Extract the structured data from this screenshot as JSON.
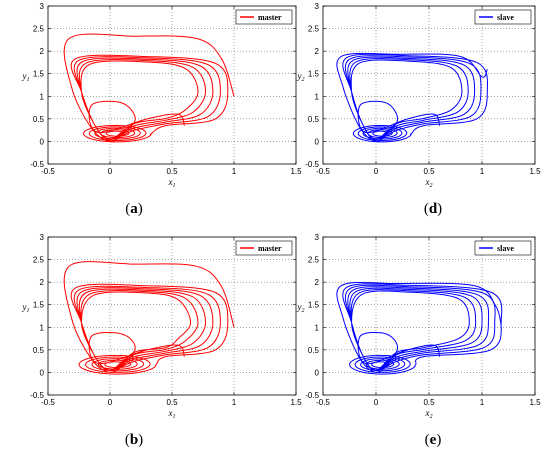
{
  "chart_data": [
    {
      "type": "line",
      "panel_label": {
        "open": "(",
        "letter": "a",
        "close": ")"
      },
      "series": [
        {
          "name": "master",
          "color": "#ff0000"
        }
      ],
      "xlabel": {
        "main": "x",
        "sub": "1"
      },
      "ylabel": {
        "main": "y",
        "sub": "1"
      },
      "xlim": [
        -0.5,
        1.5
      ],
      "ylim": [
        -0.5,
        3
      ],
      "xticks": [
        "-0.5",
        "0",
        "0.5",
        "1",
        "1.5"
      ],
      "yticks": [
        "-0.5",
        "0",
        "0.5",
        "1",
        "1.5",
        "2",
        "2.5",
        "3"
      ],
      "grid": true,
      "legend": "top-right",
      "curve": {
        "start": [
          1.0,
          1.0
        ],
        "outer_y": 2.33,
        "x_left": -0.33,
        "x_right": 0.95,
        "ring_y": [
          1.88,
          1.85,
          1.82,
          1.79,
          1.76
        ],
        "spiral_rmax": 0.22
      }
    },
    {
      "type": "line",
      "panel_label": {
        "open": "(",
        "letter": "d",
        "close": ")"
      },
      "series": [
        {
          "name": "slave",
          "color": "#0000ff"
        }
      ],
      "xlabel": {
        "main": "x",
        "sub": "2"
      },
      "ylabel": {
        "main": "y",
        "sub": "2"
      },
      "xlim": [
        -0.5,
        1.5
      ],
      "ylim": [
        -0.5,
        3
      ],
      "xticks": [
        "-0.5",
        "0",
        "0.5",
        "1",
        "1.5"
      ],
      "yticks": [
        "-0.5",
        "0",
        "0.5",
        "1",
        "1.5",
        "2",
        "2.5",
        "3"
      ],
      "grid": true,
      "legend": "top-right",
      "curve": {
        "start": [
          1.05,
          1.6
        ],
        "outer_y": 1.93,
        "x_left": -0.33,
        "x_right": 1.05,
        "ring_y": [
          1.9,
          1.87,
          1.84,
          1.81,
          1.78
        ],
        "spiral_rmax": 0.22
      }
    },
    {
      "type": "line",
      "panel_label": {
        "open": "(",
        "letter": "b",
        "close": ")"
      },
      "series": [
        {
          "name": "master",
          "color": "#ff0000"
        }
      ],
      "xlabel": {
        "main": "x",
        "sub": "1"
      },
      "ylabel": {
        "main": "y",
        "sub": "1"
      },
      "xlim": [
        -0.5,
        1.5
      ],
      "ylim": [
        -0.5,
        3
      ],
      "xticks": [
        "-0.5",
        "0",
        "0.5",
        "1",
        "1.5"
      ],
      "yticks": [
        "-0.5",
        "0",
        "0.5",
        "1",
        "1.5",
        "2",
        "2.5",
        "3"
      ],
      "grid": true,
      "legend": "top-right",
      "curve": {
        "start": [
          1.0,
          1.0
        ],
        "outer_y": 2.4,
        "x_left": -0.33,
        "x_right": 0.95,
        "ring_y": [
          1.92,
          1.88,
          1.85,
          1.82,
          1.79,
          1.76
        ],
        "spiral_rmax": 0.25
      }
    },
    {
      "type": "line",
      "panel_label": {
        "open": "(",
        "letter": "e",
        "close": ")"
      },
      "series": [
        {
          "name": "slave",
          "color": "#0000ff"
        }
      ],
      "xlabel": {
        "main": "x",
        "sub": "2"
      },
      "ylabel": {
        "main": "y",
        "sub": "2"
      },
      "xlim": [
        -0.5,
        1.5
      ],
      "ylim": [
        -0.5,
        3
      ],
      "xticks": [
        "-0.5",
        "0",
        "0.5",
        "1",
        "1.5"
      ],
      "yticks": [
        "-0.5",
        "0",
        "0.5",
        "1",
        "1.5",
        "2",
        "2.5",
        "3"
      ],
      "grid": true,
      "legend": "top-right",
      "curve": {
        "start": [
          1.18,
          1.05
        ],
        "outer_y": 1.97,
        "x_left": -0.33,
        "x_right": 1.18,
        "ring_y": [
          1.93,
          1.9,
          1.87,
          1.84,
          1.81,
          1.78
        ],
        "spiral_rmax": 0.25
      }
    }
  ]
}
